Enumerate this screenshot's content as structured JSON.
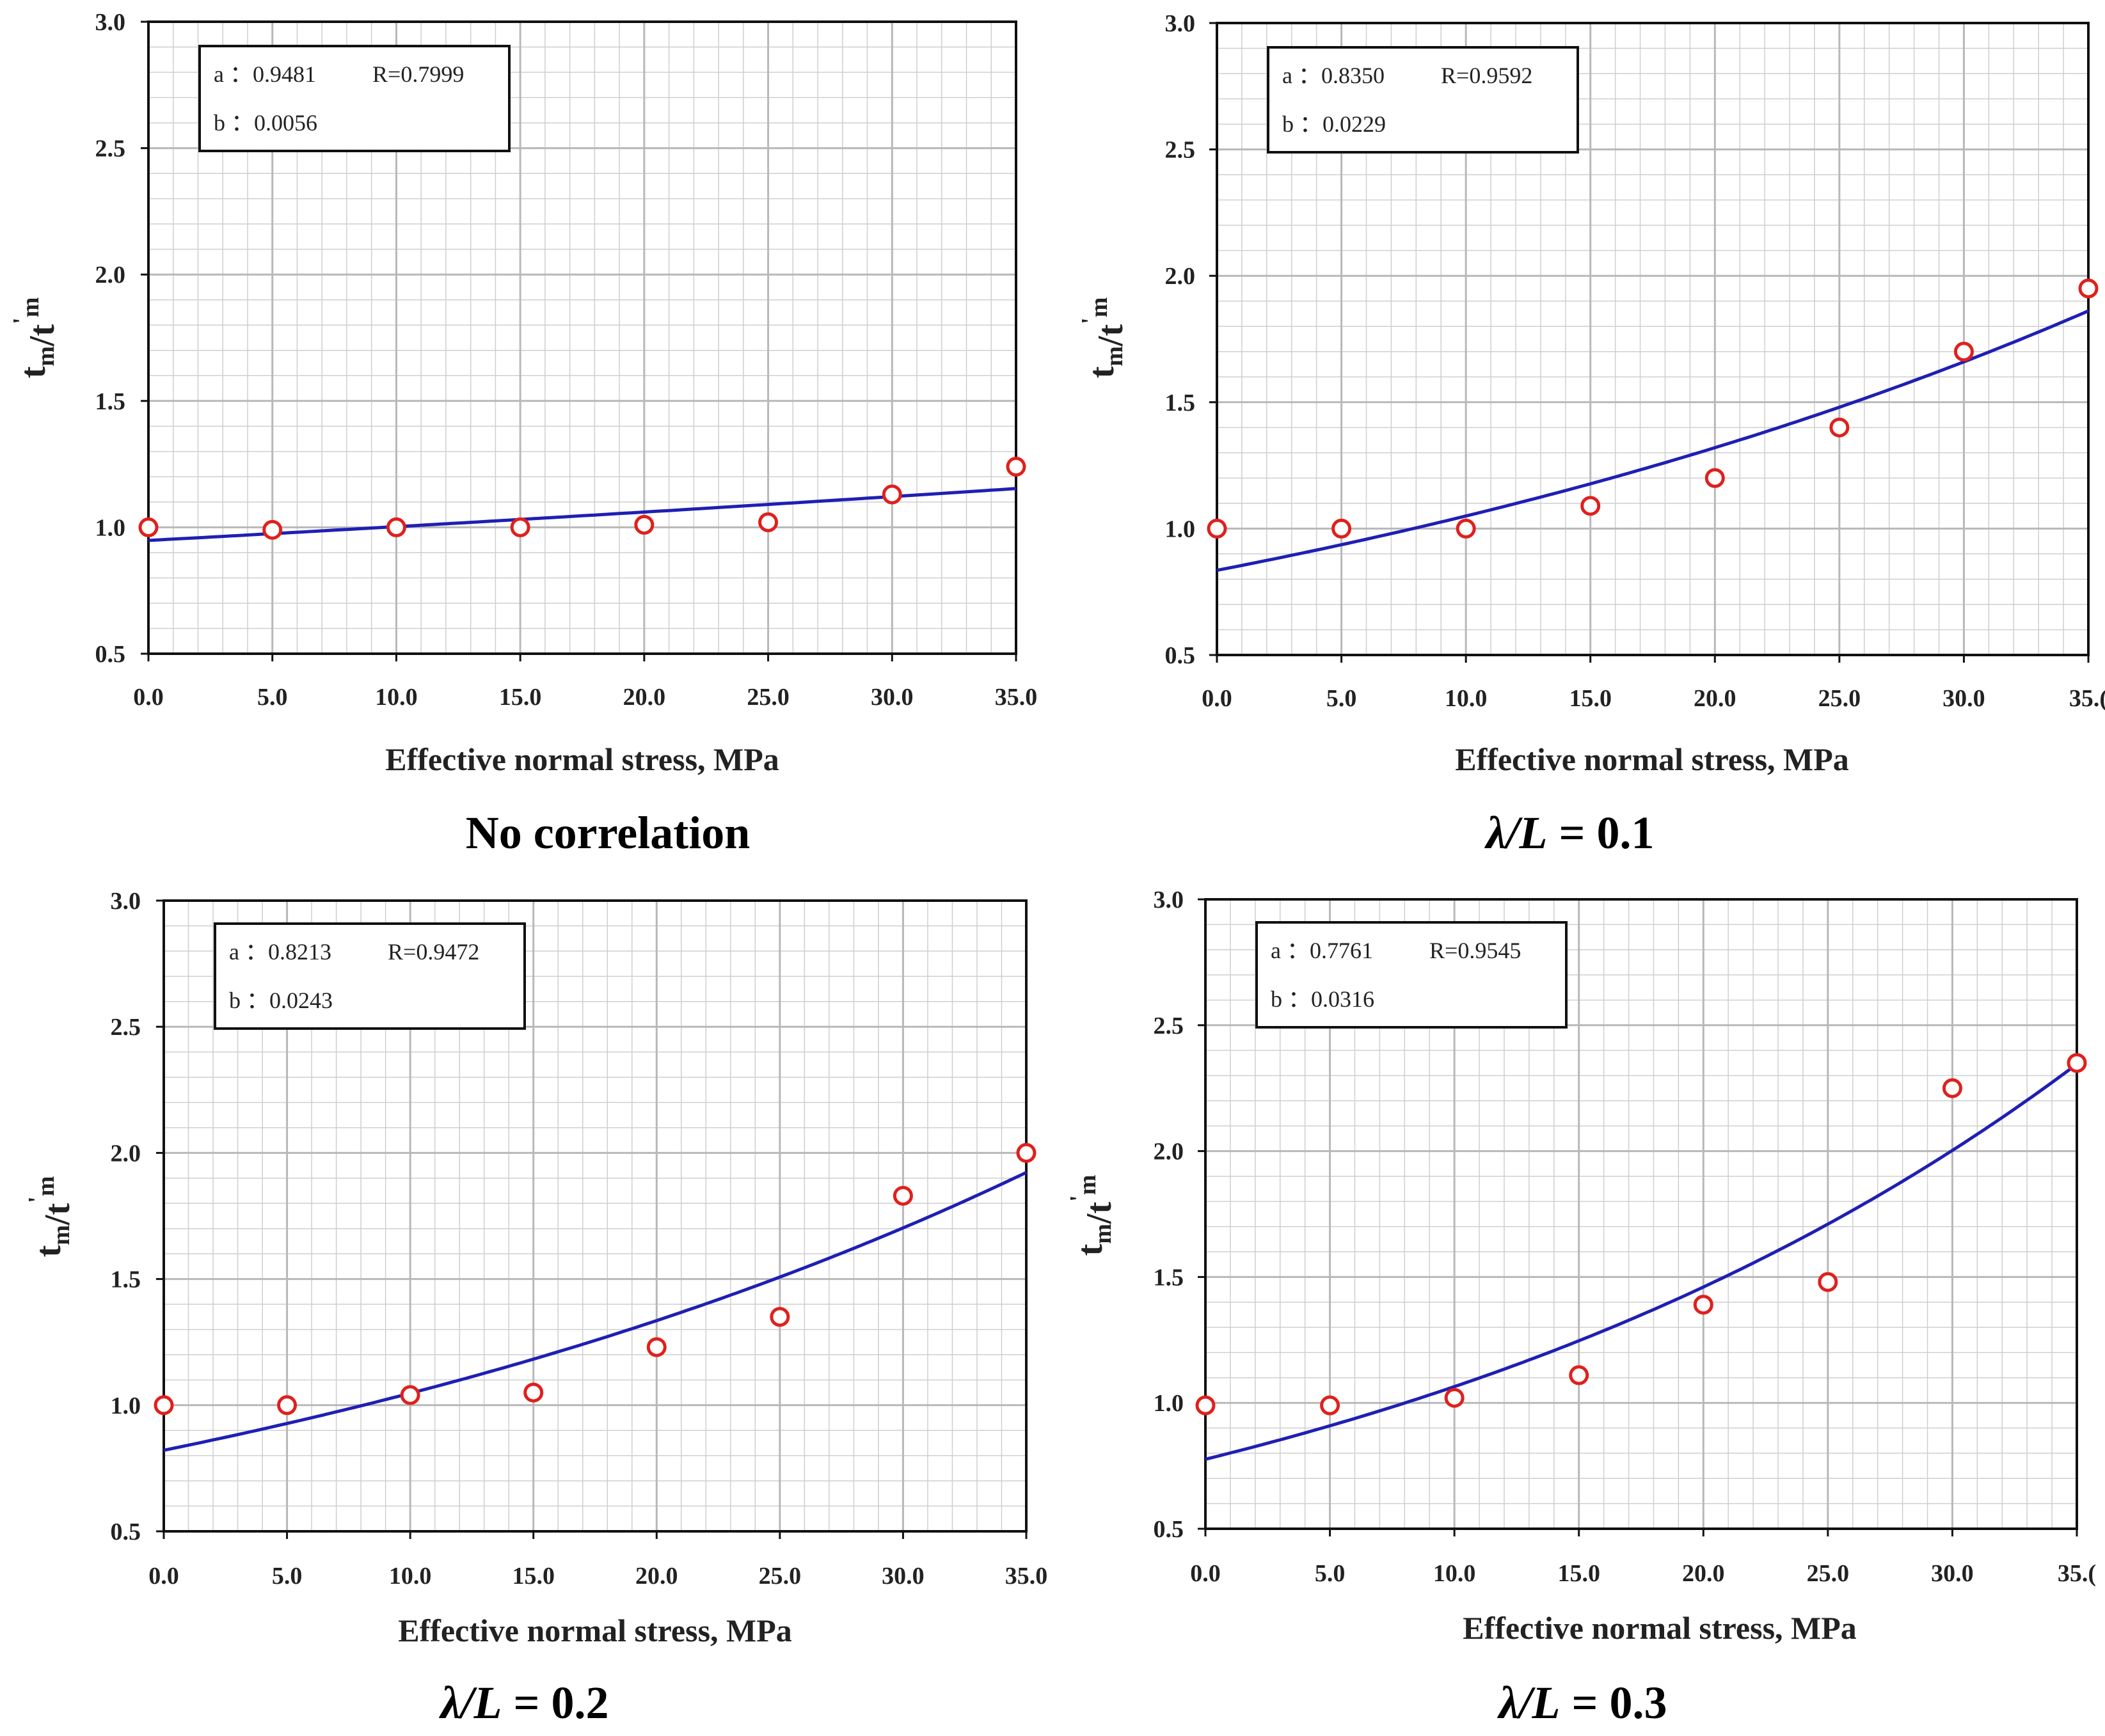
{
  "colors": {
    "curve": "#1f1fb4",
    "marker": "#e0201c",
    "grid": "#b8b8b8",
    "frame": "#111111"
  },
  "chart_data": [
    {
      "type": "scatter",
      "caption": "No correlation",
      "caption_em": "",
      "caption_rest": "",
      "xlabel": "Effective normal stress, MPa",
      "ylabel": {
        "main": "t",
        "sub1": "m",
        "slash": "/t",
        "prime": "'",
        "sub2": "m"
      },
      "xlim": [
        0,
        35
      ],
      "ylim": [
        0.5,
        3.0
      ],
      "xticks": [
        0,
        5,
        10,
        15,
        20,
        25,
        30,
        35
      ],
      "xtick_labels": [
        "0.0",
        "5.0",
        "10.0",
        "15.0",
        "20.0",
        "25.0",
        "30.0",
        "35.0"
      ],
      "yticks": [
        0.5,
        1.0,
        1.5,
        2.0,
        2.5,
        3.0
      ],
      "ytick_labels": [
        "0.5",
        "1.0",
        "1.5",
        "2.0",
        "2.5",
        "3.0"
      ],
      "points": {
        "x": [
          0,
          5,
          10,
          15,
          20,
          25,
          30,
          35
        ],
        "y": [
          1.0,
          0.99,
          1.0,
          1.0,
          1.01,
          1.02,
          1.13,
          1.24
        ]
      },
      "fit": {
        "a": 0.9481,
        "b": 0.0056
      },
      "legend": {
        "a_label": "a ：0.9481",
        "r_label": "R=0.7999",
        "b_label": "b ：0.0056"
      }
    },
    {
      "type": "scatter",
      "caption": "",
      "caption_em": "λ/L",
      "caption_rest": " = 0.1",
      "xlabel": "Effective normal stress, MPa",
      "ylabel": {
        "main": "t",
        "sub1": "m",
        "slash": "/t",
        "prime": "'",
        "sub2": "m"
      },
      "xlim": [
        0,
        35
      ],
      "ylim": [
        0.5,
        3.0
      ],
      "xticks": [
        0,
        5,
        10,
        15,
        20,
        25,
        30,
        35
      ],
      "xtick_labels": [
        "0.0",
        "5.0",
        "10.0",
        "15.0",
        "20.0",
        "25.0",
        "30.0",
        "35.("
      ],
      "yticks": [
        0.5,
        1.0,
        1.5,
        2.0,
        2.5,
        3.0
      ],
      "ytick_labels": [
        "0.5",
        "1.0",
        "1.5",
        "2.0",
        "2.5",
        "3.0"
      ],
      "points": {
        "x": [
          0,
          5,
          10,
          15,
          20,
          25,
          30,
          35
        ],
        "y": [
          1.0,
          1.0,
          1.0,
          1.09,
          1.2,
          1.4,
          1.7,
          1.95
        ]
      },
      "fit": {
        "a": 0.835,
        "b": 0.0229
      },
      "legend": {
        "a_label": "a ：0.8350",
        "r_label": "R=0.9592",
        "b_label": "b ：0.0229"
      }
    },
    {
      "type": "scatter",
      "caption": "",
      "caption_em": "λ/L",
      "caption_rest": " = 0.2",
      "xlabel": "Effective normal stress, MPa",
      "ylabel": {
        "main": "t",
        "sub1": "m",
        "slash": "/t",
        "prime": "'",
        "sub2": "m"
      },
      "xlim": [
        0,
        35
      ],
      "ylim": [
        0.5,
        3.0
      ],
      "xticks": [
        0,
        5,
        10,
        15,
        20,
        25,
        30,
        35
      ],
      "xtick_labels": [
        "0.0",
        "5.0",
        "10.0",
        "15.0",
        "20.0",
        "25.0",
        "30.0",
        "35.0"
      ],
      "yticks": [
        0.5,
        1.0,
        1.5,
        2.0,
        2.5,
        3.0
      ],
      "ytick_labels": [
        "0.5",
        "1.0",
        "1.5",
        "2.0",
        "2.5",
        "3.0"
      ],
      "points": {
        "x": [
          0,
          5,
          10,
          15,
          20,
          25,
          30,
          35
        ],
        "y": [
          1.0,
          1.0,
          1.04,
          1.05,
          1.23,
          1.35,
          1.83,
          2.0
        ]
      },
      "fit": {
        "a": 0.8213,
        "b": 0.0243
      },
      "legend": {
        "a_label": "a ：0.8213",
        "r_label": "R=0.9472",
        "b_label": "b ：0.0243"
      }
    },
    {
      "type": "scatter",
      "caption": "",
      "caption_em": "λ/L",
      "caption_rest": " = 0.3",
      "xlabel": "Effective normal stress, MPa",
      "ylabel": {
        "main": "t",
        "sub1": "m",
        "slash": "/t",
        "prime": "'",
        "sub2": "m"
      },
      "xlim": [
        0,
        35
      ],
      "ylim": [
        0.5,
        3.0
      ],
      "xticks": [
        0,
        5,
        10,
        15,
        20,
        25,
        30,
        35
      ],
      "xtick_labels": [
        "0.0",
        "5.0",
        "10.0",
        "15.0",
        "20.0",
        "25.0",
        "30.0",
        "35.("
      ],
      "yticks": [
        0.5,
        1.0,
        1.5,
        2.0,
        2.5,
        3.0
      ],
      "ytick_labels": [
        "0.5",
        "1.0",
        "1.5",
        "2.0",
        "2.5",
        "3.0"
      ],
      "points": {
        "x": [
          0,
          5,
          10,
          15,
          20,
          25,
          30,
          35
        ],
        "y": [
          0.99,
          0.99,
          1.02,
          1.11,
          1.39,
          1.48,
          2.25,
          2.35
        ]
      },
      "fit": {
        "a": 0.7761,
        "b": 0.0316
      },
      "legend": {
        "a_label": "a ：0.7761",
        "r_label": "R=0.9545",
        "b_label": "b ：0.0316"
      }
    }
  ]
}
